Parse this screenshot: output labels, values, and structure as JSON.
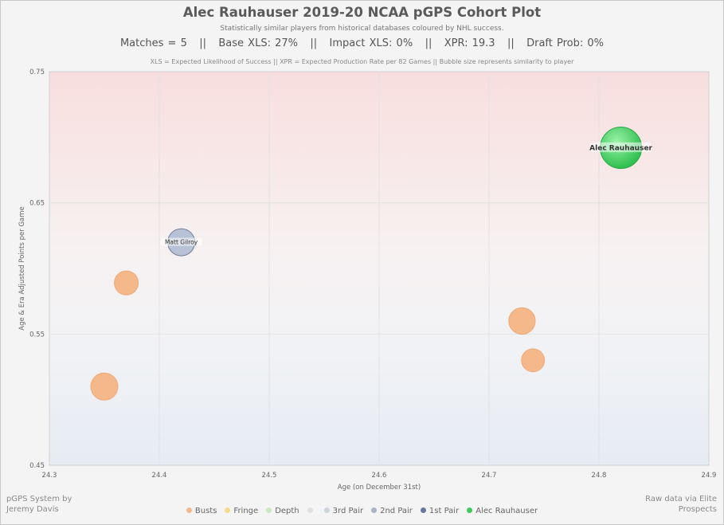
{
  "header": {
    "title": "Alec Rauhauser 2019-20 NCAA pGPS Cohort Plot",
    "subtitle": "Statistically similar players from historical databases coloured by NHL success.",
    "stats_line": "Matches = 5   ||   Base XLS: 27%   ||   Impact XLS: 0%   ||   XPR: 19.3   ||   Draft Prob: 0%",
    "note": "XLS = Expected Likelihood of Success || XPR = Expected Production Rate per 82 Games || Bubble size represents similarity to player"
  },
  "credits": {
    "left_line1": "pGPS System by",
    "left_line2": "Jeremy Davis",
    "right_line1": "Raw data via Elite",
    "right_line2": "Prospects"
  },
  "legend": [
    {
      "label": "Busts",
      "color": "#f5b88a"
    },
    {
      "label": "Fringe",
      "color": "#f7d98a"
    },
    {
      "label": "Depth",
      "color": "#c9e8c0"
    },
    {
      "label": "",
      "color": "#e0e0e0"
    },
    {
      "label": "3rd Pair",
      "color": "#cfd3da"
    },
    {
      "label": "2nd Pair",
      "color": "#a9b3c6"
    },
    {
      "label": "1st Pair",
      "color": "#6677a0"
    },
    {
      "label": "Alec Rauhauser",
      "color": "#3cc85a"
    }
  ],
  "chart_data": {
    "type": "scatter",
    "xlabel": "Age (on December 31st)",
    "ylabel": "Age & Era Adjusted Points per Game",
    "xlim": [
      24.3,
      24.9
    ],
    "ylim": [
      0.45,
      0.75
    ],
    "xticks": [
      "24.3",
      "24.4",
      "24.5",
      "24.6",
      "24.7",
      "24.8",
      "24.9"
    ],
    "yticks": [
      "0.45",
      "0.55",
      "0.65",
      "0.75"
    ],
    "grid": true,
    "points": [
      {
        "x": 24.82,
        "y": 0.692,
        "similarity": 1.0,
        "category": "Alec Rauhauser",
        "color": "#3cc85a",
        "label": "Alec Rauhauser"
      },
      {
        "x": 24.42,
        "y": 0.62,
        "similarity": 0.55,
        "category": "2nd Pair",
        "color": "#b8c2d6",
        "label": "Matt Gilroy"
      },
      {
        "x": 24.37,
        "y": 0.589,
        "similarity": 0.45,
        "category": "Busts",
        "color": "#f5b88a",
        "label": ""
      },
      {
        "x": 24.35,
        "y": 0.51,
        "similarity": 0.55,
        "category": "Busts",
        "color": "#f5b88a",
        "label": ""
      },
      {
        "x": 24.73,
        "y": 0.56,
        "similarity": 0.53,
        "category": "Busts",
        "color": "#f5b88a",
        "label": ""
      },
      {
        "x": 24.74,
        "y": 0.53,
        "similarity": 0.42,
        "category": "Busts",
        "color": "#f5b88a",
        "label": ""
      }
    ]
  }
}
